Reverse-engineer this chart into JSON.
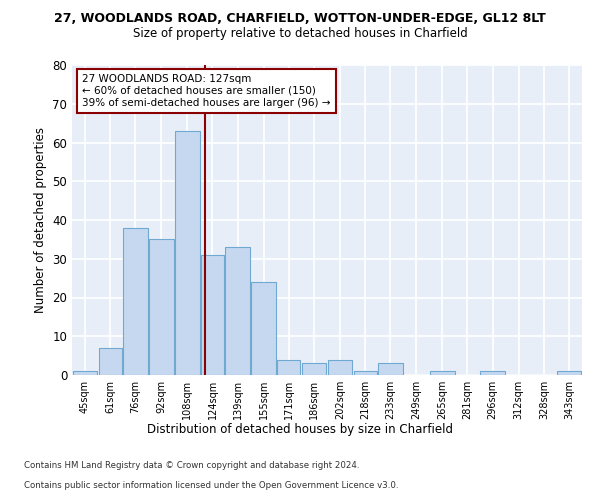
{
  "title_line1": "27, WOODLANDS ROAD, CHARFIELD, WOTTON-UNDER-EDGE, GL12 8LT",
  "title_line2": "Size of property relative to detached houses in Charfield",
  "xlabel": "Distribution of detached houses by size in Charfield",
  "ylabel": "Number of detached properties",
  "bar_edges": [
    45,
    61,
    76,
    92,
    108,
    124,
    139,
    155,
    171,
    186,
    202,
    218,
    233,
    249,
    265,
    281,
    296,
    312,
    328,
    343,
    359
  ],
  "bar_heights": [
    1,
    7,
    38,
    35,
    63,
    31,
    33,
    24,
    4,
    3,
    4,
    1,
    3,
    0,
    1,
    0,
    1,
    0,
    0,
    1
  ],
  "bar_color": "#c5d8f0",
  "bar_edge_color": "#6fa8d0",
  "property_size": 127,
  "vline_color": "#8b0000",
  "annotation_line1": "27 WOODLANDS ROAD: 127sqm",
  "annotation_line2": "← 60% of detached houses are smaller (150)",
  "annotation_line3": "39% of semi-detached houses are larger (96) →",
  "annotation_box_color": "#8b0000",
  "ylim": [
    0,
    80
  ],
  "yticks": [
    0,
    10,
    20,
    30,
    40,
    50,
    60,
    70,
    80
  ],
  "footer_line1": "Contains HM Land Registry data © Crown copyright and database right 2024.",
  "footer_line2": "Contains public sector information licensed under the Open Government Licence v3.0.",
  "background_color": "#e8eef8",
  "grid_color": "#ffffff"
}
